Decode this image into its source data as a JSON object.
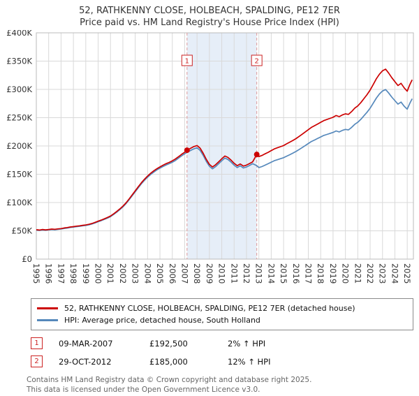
{
  "colors": {
    "accent-red": "#cc2222",
    "property-line": "#cc0000",
    "hpi-line": "#5588bb",
    "band": "#e6eef8",
    "grid": "#d9d9d9",
    "dashed": "#dd9999",
    "axis-border": "#bbbbbb",
    "tick-text": "#333333"
  },
  "chart_data": {
    "type": "line",
    "title": "52, RATHKENNY CLOSE, HOLBEACH, SPALDING, PE12 7ER",
    "subtitle": "Price paid vs. HM Land Registry's House Price Index (HPI)",
    "xlim": [
      1995,
      2025.5
    ],
    "ylim": [
      0,
      400000
    ],
    "grid": true,
    "x_ticks": [
      1995,
      1996,
      1997,
      1998,
      1999,
      2000,
      2001,
      2002,
      2003,
      2004,
      2005,
      2006,
      2007,
      2008,
      2009,
      2010,
      2011,
      2012,
      2013,
      2014,
      2015,
      2016,
      2017,
      2018,
      2019,
      2020,
      2021,
      2022,
      2023,
      2024,
      2025
    ],
    "y_ticks": [
      {
        "v": 0,
        "label": "£0"
      },
      {
        "v": 50000,
        "label": "£50K"
      },
      {
        "v": 100000,
        "label": "£100K"
      },
      {
        "v": 150000,
        "label": "£150K"
      },
      {
        "v": 200000,
        "label": "£200K"
      },
      {
        "v": 250000,
        "label": "£250K"
      },
      {
        "v": 300000,
        "label": "£300K"
      },
      {
        "v": 350000,
        "label": "£350K"
      },
      {
        "v": 400000,
        "label": "£400K"
      }
    ],
    "band": {
      "from": 2007.19,
      "to": 2012.83,
      "color": "#e6eef8"
    },
    "series": [
      {
        "name": "52, RATHKENNY CLOSE, HOLBEACH, SPALDING, PE12 7ER (detached house)",
        "color": "#cc0000",
        "points": [
          [
            1995.0,
            52000
          ],
          [
            1995.25,
            51400
          ],
          [
            1995.5,
            52300
          ],
          [
            1995.75,
            51700
          ],
          [
            1996.0,
            52400
          ],
          [
            1996.25,
            53100
          ],
          [
            1996.5,
            52700
          ],
          [
            1996.75,
            53400
          ],
          [
            1997.0,
            54000
          ],
          [
            1997.25,
            55000
          ],
          [
            1997.5,
            55800
          ],
          [
            1997.75,
            56800
          ],
          [
            1998.0,
            57400
          ],
          [
            1998.25,
            58300
          ],
          [
            1998.5,
            58900
          ],
          [
            1998.75,
            59800
          ],
          [
            1999.0,
            60400
          ],
          [
            1999.25,
            61500
          ],
          [
            1999.5,
            63000
          ],
          [
            1999.75,
            65000
          ],
          [
            2000.0,
            67000
          ],
          [
            2000.25,
            69000
          ],
          [
            2000.5,
            71200
          ],
          [
            2000.75,
            73600
          ],
          [
            2001.0,
            76200
          ],
          [
            2001.25,
            80000
          ],
          [
            2001.5,
            84200
          ],
          [
            2001.75,
            88600
          ],
          [
            2002.0,
            93400
          ],
          [
            2002.25,
            99400
          ],
          [
            2002.5,
            106200
          ],
          [
            2002.75,
            113400
          ],
          [
            2003.0,
            120600
          ],
          [
            2003.25,
            128000
          ],
          [
            2003.5,
            135000
          ],
          [
            2003.75,
            141200
          ],
          [
            2004.0,
            146800
          ],
          [
            2004.25,
            151800
          ],
          [
            2004.5,
            156000
          ],
          [
            2004.75,
            159800
          ],
          [
            2005.0,
            163000
          ],
          [
            2005.25,
            166000
          ],
          [
            2005.5,
            168800
          ],
          [
            2005.75,
            171000
          ],
          [
            2006.0,
            173800
          ],
          [
            2006.25,
            177000
          ],
          [
            2006.5,
            181000
          ],
          [
            2006.75,
            185200
          ],
          [
            2007.0,
            189000
          ],
          [
            2007.19,
            192500
          ],
          [
            2007.5,
            196200
          ],
          [
            2007.75,
            199000
          ],
          [
            2008.0,
            200800
          ],
          [
            2008.25,
            196000
          ],
          [
            2008.5,
            187000
          ],
          [
            2008.75,
            176400
          ],
          [
            2009.0,
            167400
          ],
          [
            2009.25,
            162800
          ],
          [
            2009.5,
            166800
          ],
          [
            2009.75,
            172000
          ],
          [
            2010.0,
            177400
          ],
          [
            2010.25,
            182200
          ],
          [
            2010.5,
            179800
          ],
          [
            2010.75,
            175000
          ],
          [
            2011.0,
            169400
          ],
          [
            2011.25,
            165200
          ],
          [
            2011.5,
            168200
          ],
          [
            2011.75,
            164400
          ],
          [
            2012.0,
            166200
          ],
          [
            2012.25,
            169000
          ],
          [
            2012.5,
            172000
          ],
          [
            2012.83,
            185000
          ],
          [
            2013.0,
            181200
          ],
          [
            2013.25,
            183200
          ],
          [
            2013.5,
            186000
          ],
          [
            2013.75,
            188800
          ],
          [
            2014.0,
            191800
          ],
          [
            2014.25,
            194800
          ],
          [
            2014.5,
            196800
          ],
          [
            2014.75,
            198800
          ],
          [
            2015.0,
            200800
          ],
          [
            2015.25,
            203800
          ],
          [
            2015.5,
            206800
          ],
          [
            2015.75,
            209800
          ],
          [
            2016.0,
            213000
          ],
          [
            2016.25,
            216800
          ],
          [
            2016.5,
            220800
          ],
          [
            2016.75,
            224800
          ],
          [
            2017.0,
            228800
          ],
          [
            2017.25,
            232800
          ],
          [
            2017.5,
            235800
          ],
          [
            2017.75,
            238800
          ],
          [
            2018.0,
            241800
          ],
          [
            2018.25,
            244800
          ],
          [
            2018.5,
            246800
          ],
          [
            2018.75,
            248800
          ],
          [
            2019.0,
            250800
          ],
          [
            2019.25,
            253800
          ],
          [
            2019.5,
            251800
          ],
          [
            2019.75,
            254800
          ],
          [
            2020.0,
            256800
          ],
          [
            2020.25,
            255800
          ],
          [
            2020.5,
            260800
          ],
          [
            2020.75,
            266800
          ],
          [
            2021.0,
            270800
          ],
          [
            2021.25,
            276800
          ],
          [
            2021.5,
            283800
          ],
          [
            2021.75,
            290800
          ],
          [
            2022.0,
            298800
          ],
          [
            2022.25,
            308800
          ],
          [
            2022.5,
            318800
          ],
          [
            2022.75,
            326800
          ],
          [
            2023.0,
            332800
          ],
          [
            2023.25,
            335800
          ],
          [
            2023.5,
            328800
          ],
          [
            2023.75,
            320800
          ],
          [
            2024.0,
            313800
          ],
          [
            2024.25,
            306800
          ],
          [
            2024.5,
            310800
          ],
          [
            2024.75,
            302800
          ],
          [
            2025.0,
            296800
          ],
          [
            2025.2,
            308000
          ],
          [
            2025.4,
            317000
          ]
        ]
      },
      {
        "name": "HPI: Average price, detached house, South Holland",
        "color": "#5588bb",
        "points": [
          [
            1995.0,
            51200
          ],
          [
            1995.25,
            50700
          ],
          [
            1995.5,
            51500
          ],
          [
            1995.75,
            51000
          ],
          [
            1996.0,
            51700
          ],
          [
            1996.25,
            52300
          ],
          [
            1996.5,
            51900
          ],
          [
            1996.75,
            52600
          ],
          [
            1997.0,
            53200
          ],
          [
            1997.25,
            54100
          ],
          [
            1997.5,
            54900
          ],
          [
            1997.75,
            55900
          ],
          [
            1998.0,
            56500
          ],
          [
            1998.25,
            57400
          ],
          [
            1998.5,
            58000
          ],
          [
            1998.75,
            58900
          ],
          [
            1999.0,
            59500
          ],
          [
            1999.25,
            60600
          ],
          [
            1999.5,
            62100
          ],
          [
            1999.75,
            64000
          ],
          [
            2000.0,
            66000
          ],
          [
            2000.25,
            68000
          ],
          [
            2000.5,
            70200
          ],
          [
            2000.75,
            72500
          ],
          [
            2001.0,
            75100
          ],
          [
            2001.25,
            78900
          ],
          [
            2001.5,
            83000
          ],
          [
            2001.75,
            87400
          ],
          [
            2002.0,
            92100
          ],
          [
            2002.25,
            98000
          ],
          [
            2002.5,
            104800
          ],
          [
            2002.75,
            111900
          ],
          [
            2003.0,
            119000
          ],
          [
            2003.25,
            126300
          ],
          [
            2003.5,
            133200
          ],
          [
            2003.75,
            139300
          ],
          [
            2004.0,
            144800
          ],
          [
            2004.25,
            149700
          ],
          [
            2004.5,
            153800
          ],
          [
            2004.75,
            157600
          ],
          [
            2005.0,
            160700
          ],
          [
            2005.25,
            163700
          ],
          [
            2005.5,
            166400
          ],
          [
            2005.75,
            168600
          ],
          [
            2006.0,
            171300
          ],
          [
            2006.25,
            174500
          ],
          [
            2006.5,
            178400
          ],
          [
            2006.75,
            182500
          ],
          [
            2007.0,
            186200
          ],
          [
            2007.19,
            188700
          ],
          [
            2007.5,
            192300
          ],
          [
            2007.75,
            195000
          ],
          [
            2008.0,
            196800
          ],
          [
            2008.25,
            192100
          ],
          [
            2008.5,
            183300
          ],
          [
            2008.75,
            172900
          ],
          [
            2009.0,
            164100
          ],
          [
            2009.25,
            159600
          ],
          [
            2009.5,
            163500
          ],
          [
            2009.75,
            168600
          ],
          [
            2010.0,
            173900
          ],
          [
            2010.25,
            178600
          ],
          [
            2010.5,
            176200
          ],
          [
            2010.75,
            171500
          ],
          [
            2011.0,
            166000
          ],
          [
            2011.25,
            161900
          ],
          [
            2011.5,
            164900
          ],
          [
            2011.75,
            161100
          ],
          [
            2012.0,
            162900
          ],
          [
            2012.25,
            165600
          ],
          [
            2012.5,
            168600
          ],
          [
            2012.83,
            165200
          ],
          [
            2013.0,
            161800
          ],
          [
            2013.25,
            163600
          ],
          [
            2013.5,
            166100
          ],
          [
            2013.75,
            168600
          ],
          [
            2014.0,
            171300
          ],
          [
            2014.25,
            173900
          ],
          [
            2014.5,
            175700
          ],
          [
            2014.75,
            177500
          ],
          [
            2015.0,
            179300
          ],
          [
            2015.25,
            182000
          ],
          [
            2015.5,
            184600
          ],
          [
            2015.75,
            187300
          ],
          [
            2016.0,
            190200
          ],
          [
            2016.25,
            193600
          ],
          [
            2016.5,
            197100
          ],
          [
            2016.75,
            200700
          ],
          [
            2017.0,
            204300
          ],
          [
            2017.25,
            207900
          ],
          [
            2017.5,
            210500
          ],
          [
            2017.75,
            213200
          ],
          [
            2018.0,
            215900
          ],
          [
            2018.25,
            218600
          ],
          [
            2018.5,
            220400
          ],
          [
            2018.75,
            222100
          ],
          [
            2019.0,
            223900
          ],
          [
            2019.25,
            226600
          ],
          [
            2019.5,
            224800
          ],
          [
            2019.75,
            227500
          ],
          [
            2020.0,
            229300
          ],
          [
            2020.25,
            228400
          ],
          [
            2020.5,
            232900
          ],
          [
            2020.75,
            238200
          ],
          [
            2021.0,
            241800
          ],
          [
            2021.25,
            247100
          ],
          [
            2021.5,
            253400
          ],
          [
            2021.75,
            259600
          ],
          [
            2022.0,
            266800
          ],
          [
            2022.25,
            275700
          ],
          [
            2022.5,
            284600
          ],
          [
            2022.75,
            291800
          ],
          [
            2023.0,
            297100
          ],
          [
            2023.25,
            299800
          ],
          [
            2023.5,
            293600
          ],
          [
            2023.75,
            286400
          ],
          [
            2024.0,
            280200
          ],
          [
            2024.25,
            273900
          ],
          [
            2024.5,
            277500
          ],
          [
            2024.75,
            270400
          ],
          [
            2025.0,
            265000
          ],
          [
            2025.2,
            275000
          ],
          [
            2025.4,
            283500
          ]
        ]
      }
    ],
    "sales": [
      {
        "n": "1",
        "x": 2007.19,
        "y": 192500,
        "date": "09-MAR-2007",
        "price": "£192,500",
        "hpi": "2% ↑ HPI"
      },
      {
        "n": "2",
        "x": 2012.83,
        "y": 185000,
        "date": "29-OCT-2012",
        "price": "£185,000",
        "hpi": "12% ↑ HPI"
      }
    ]
  },
  "footer": {
    "line1": "Contains HM Land Registry data © Crown copyright and database right 2025.",
    "line2": "This data is licensed under the Open Government Licence v3.0."
  }
}
